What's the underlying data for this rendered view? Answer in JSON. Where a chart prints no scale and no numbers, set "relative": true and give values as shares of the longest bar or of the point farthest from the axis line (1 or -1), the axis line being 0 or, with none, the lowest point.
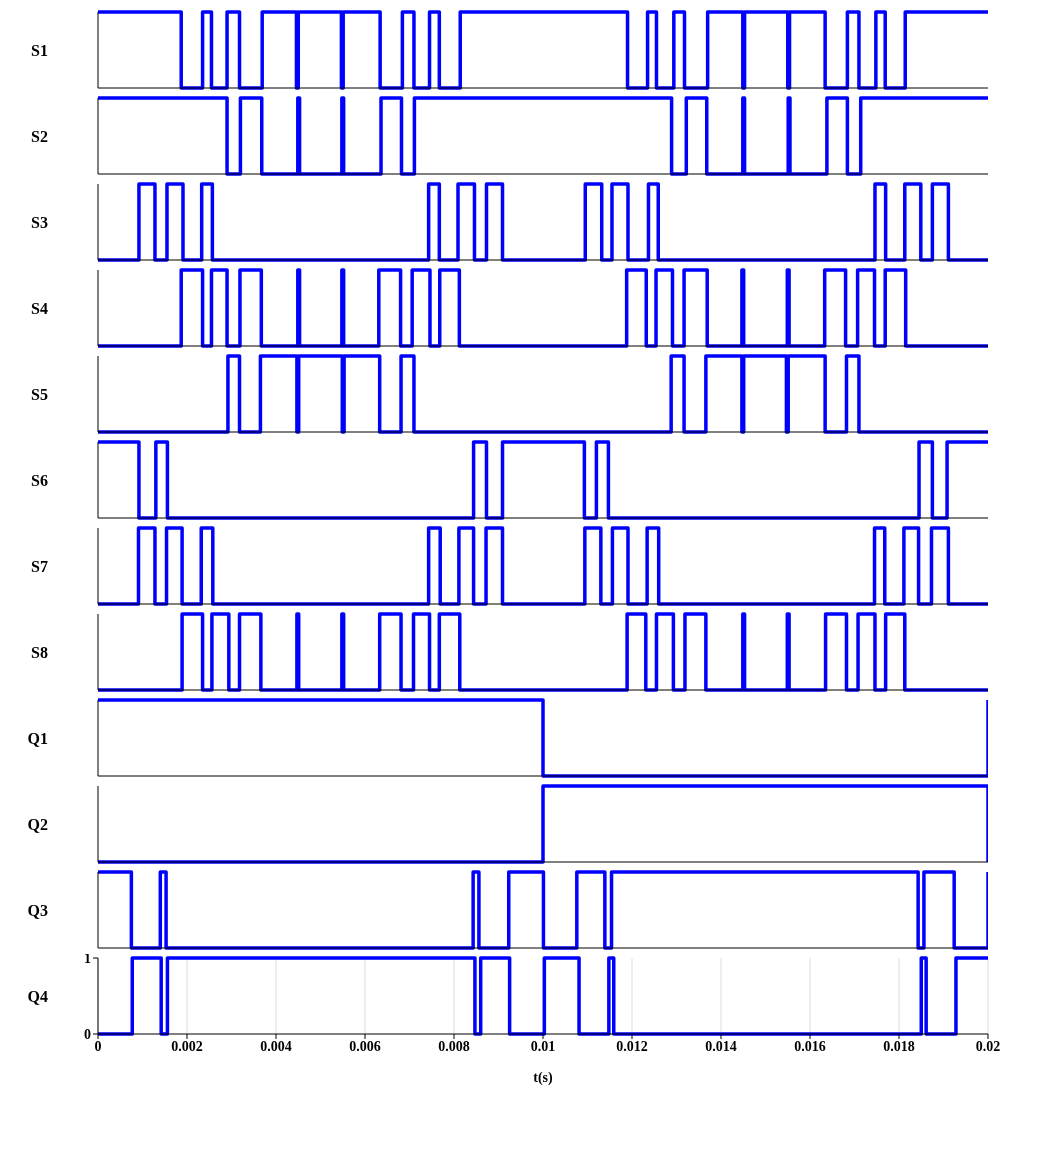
{
  "chart_data": [
    {
      "type": "step",
      "ylabel": "S1",
      "color": "#0000ff",
      "xlim": [
        0,
        0.02
      ],
      "relative": true,
      "tick_labels": false,
      "x": [
        0,
        0.00187,
        0.00235,
        0.00255,
        0.0029,
        0.00318,
        0.00369,
        0.00446,
        0.0045,
        0.00547,
        0.00551,
        0.00634,
        0.00684,
        0.0071,
        0.00745,
        0.00767,
        0.00814,
        0.0119,
        0.01235,
        0.01255,
        0.01294,
        0.01318,
        0.0137,
        0.01449,
        0.01453,
        0.0155,
        0.01554,
        0.01634,
        0.01684,
        0.0171,
        0.01748,
        0.01769,
        0.01814,
        0.02
      ],
      "values": [
        1,
        0,
        1,
        0,
        1,
        0,
        1,
        0,
        1,
        0,
        1,
        0,
        1,
        0,
        1,
        0,
        1,
        0,
        1,
        0,
        1,
        0,
        1,
        0,
        1,
        0,
        1,
        0,
        1,
        0,
        1,
        0,
        1,
        1
      ]
    },
    {
      "type": "step",
      "ylabel": "S2",
      "color": "#0000ff",
      "xlim": [
        0,
        0.02
      ],
      "relative": true,
      "tick_labels": false,
      "x": [
        0,
        0.0029,
        0.0032,
        0.00368,
        0.00449,
        0.00453,
        0.00548,
        0.00552,
        0.00636,
        0.00682,
        0.00711,
        0.01289,
        0.01322,
        0.01368,
        0.01449,
        0.01453,
        0.01551,
        0.01555,
        0.01638,
        0.01684,
        0.01714,
        0.02
      ],
      "values": [
        1,
        0,
        1,
        0,
        1,
        0,
        1,
        0,
        1,
        0,
        1,
        0,
        1,
        0,
        1,
        0,
        1,
        0,
        1,
        0,
        1,
        1
      ]
    },
    {
      "type": "step",
      "ylabel": "S3",
      "color": "#0000ff",
      "xlim": [
        0,
        0.02
      ],
      "relative": true,
      "tick_labels": false,
      "x": [
        0,
        0.00092,
        0.00128,
        0.00155,
        0.00191,
        0.00233,
        0.00257,
        0.00743,
        0.00767,
        0.00809,
        0.00846,
        0.00873,
        0.00909,
        0.01095,
        0.01132,
        0.01155,
        0.01191,
        0.01237,
        0.01259,
        0.01746,
        0.0177,
        0.01813,
        0.01849,
        0.01875,
        0.01911,
        0.02
      ],
      "values": [
        0,
        1,
        0,
        1,
        0,
        1,
        0,
        1,
        0,
        1,
        0,
        1,
        0,
        1,
        0,
        1,
        0,
        1,
        0,
        1,
        0,
        1,
        0,
        1,
        0,
        0
      ]
    },
    {
      "type": "step",
      "ylabel": "S4",
      "color": "#0000ff",
      "xlim": [
        0,
        0.02
      ],
      "relative": true,
      "tick_labels": false,
      "x": [
        0,
        0.00187,
        0.00235,
        0.00255,
        0.0029,
        0.00319,
        0.00367,
        0.00449,
        0.00453,
        0.00548,
        0.00552,
        0.00631,
        0.0068,
        0.00706,
        0.00746,
        0.00768,
        0.00812,
        0.01188,
        0.01232,
        0.01254,
        0.01291,
        0.01317,
        0.01369,
        0.01447,
        0.01451,
        0.01549,
        0.01553,
        0.01633,
        0.0168,
        0.01707,
        0.01745,
        0.01769,
        0.01815,
        0.02
      ],
      "values": [
        0,
        1,
        0,
        1,
        0,
        1,
        0,
        1,
        0,
        1,
        0,
        1,
        0,
        1,
        0,
        1,
        0,
        1,
        0,
        1,
        0,
        1,
        0,
        1,
        0,
        1,
        0,
        1,
        0,
        1,
        0,
        1,
        0,
        0
      ]
    },
    {
      "type": "step",
      "ylabel": "S5",
      "color": "#0000ff",
      "xlim": [
        0,
        0.02
      ],
      "relative": true,
      "tick_labels": false,
      "x": [
        0,
        0.00292,
        0.00318,
        0.00365,
        0.00447,
        0.00451,
        0.00549,
        0.00553,
        0.00633,
        0.00681,
        0.0071,
        0.01288,
        0.01317,
        0.01366,
        0.01447,
        0.01451,
        0.01547,
        0.01551,
        0.01634,
        0.01682,
        0.0171,
        0.02
      ],
      "values": [
        0,
        1,
        0,
        1,
        0,
        1,
        0,
        1,
        0,
        1,
        0,
        1,
        0,
        1,
        0,
        1,
        0,
        1,
        0,
        1,
        0,
        0
      ]
    },
    {
      "type": "step",
      "ylabel": "S6",
      "color": "#0000ff",
      "xlim": [
        0,
        0.02
      ],
      "relative": true,
      "tick_labels": false,
      "x": [
        0,
        0.00092,
        0.0013,
        0.00156,
        0.00844,
        0.00873,
        0.00909,
        0.01093,
        0.0112,
        0.01147,
        0.01845,
        0.01875,
        0.01908,
        0.02
      ],
      "values": [
        1,
        0,
        1,
        0,
        1,
        0,
        1,
        0,
        1,
        0,
        1,
        0,
        1,
        1
      ]
    },
    {
      "type": "step",
      "ylabel": "S7",
      "color": "#0000ff",
      "xlim": [
        0,
        0.02
      ],
      "relative": true,
      "tick_labels": false,
      "x": [
        0,
        0.00091,
        0.00128,
        0.00154,
        0.00189,
        0.00232,
        0.00258,
        0.00743,
        0.00769,
        0.00811,
        0.00844,
        0.00872,
        0.00909,
        0.01094,
        0.0113,
        0.01156,
        0.01191,
        0.01234,
        0.0126,
        0.01745,
        0.01768,
        0.01811,
        0.01844,
        0.01873,
        0.01911,
        0.02
      ],
      "values": [
        0,
        1,
        0,
        1,
        0,
        1,
        0,
        1,
        0,
        1,
        0,
        1,
        0,
        1,
        0,
        1,
        0,
        1,
        0,
        1,
        0,
        1,
        0,
        1,
        0,
        0
      ]
    },
    {
      "type": "step",
      "ylabel": "S8",
      "color": "#0000ff",
      "xlim": [
        0,
        0.02
      ],
      "relative": true,
      "tick_labels": false,
      "x": [
        0,
        0.00189,
        0.00235,
        0.00256,
        0.00294,
        0.00318,
        0.00366,
        0.00447,
        0.00451,
        0.00548,
        0.00552,
        0.00633,
        0.00681,
        0.00709,
        0.00745,
        0.00767,
        0.00813,
        0.01189,
        0.01231,
        0.01255,
        0.01293,
        0.01319,
        0.01366,
        0.01449,
        0.01453,
        0.01549,
        0.01553,
        0.01635,
        0.01682,
        0.01708,
        0.01746,
        0.0177,
        0.01813,
        0.02
      ],
      "values": [
        0,
        1,
        0,
        1,
        0,
        1,
        0,
        1,
        0,
        1,
        0,
        1,
        0,
        1,
        0,
        1,
        0,
        1,
        0,
        1,
        0,
        1,
        0,
        1,
        0,
        1,
        0,
        1,
        0,
        1,
        0,
        1,
        0,
        0
      ]
    },
    {
      "type": "step",
      "ylabel": "Q1",
      "color": "#0000ff",
      "xlim": [
        0,
        0.02
      ],
      "relative": true,
      "tick_labels": false,
      "x": [
        0,
        0.01,
        0.02
      ],
      "values": [
        1,
        0,
        1
      ]
    },
    {
      "type": "step",
      "ylabel": "Q2",
      "color": "#0000ff",
      "xlim": [
        0,
        0.02
      ],
      "relative": true,
      "tick_labels": false,
      "x": [
        0,
        0.01,
        0.02
      ],
      "values": [
        0,
        1,
        0
      ]
    },
    {
      "type": "step",
      "ylabel": "Q3",
      "color": "#0000ff",
      "xlim": [
        0,
        0.02
      ],
      "relative": true,
      "tick_labels": false,
      "x": [
        0,
        0.00075,
        0.0014,
        0.00153,
        0.00843,
        0.00856,
        0.00923,
        0.01001,
        0.01076,
        0.01139,
        0.01154,
        0.01843,
        0.01856,
        0.01924,
        0.02
      ],
      "values": [
        1,
        0,
        1,
        0,
        1,
        0,
        1,
        0,
        1,
        0,
        1,
        0,
        1,
        0,
        1
      ]
    },
    {
      "type": "step",
      "ylabel": "Q4",
      "xlabel": "t(s)",
      "color": "#0000ff",
      "xlim": [
        0,
        0.02
      ],
      "ylim": [
        0,
        1
      ],
      "xticks": [
        0,
        0.002,
        0.004,
        0.006,
        0.008,
        0.01,
        0.012,
        0.014,
        0.016,
        0.018,
        0.02
      ],
      "yticks": [
        0,
        1
      ],
      "grid": "x",
      "x": [
        0,
        0.00077,
        0.00142,
        0.00156,
        0.00847,
        0.0086,
        0.00925,
        0.01003,
        0.01081,
        0.01148,
        0.01159,
        0.0185,
        0.01861,
        0.01928,
        0.02
      ],
      "values": [
        0,
        1,
        0,
        1,
        0,
        1,
        0,
        1,
        0,
        1,
        0,
        1,
        0,
        1,
        1
      ]
    }
  ]
}
